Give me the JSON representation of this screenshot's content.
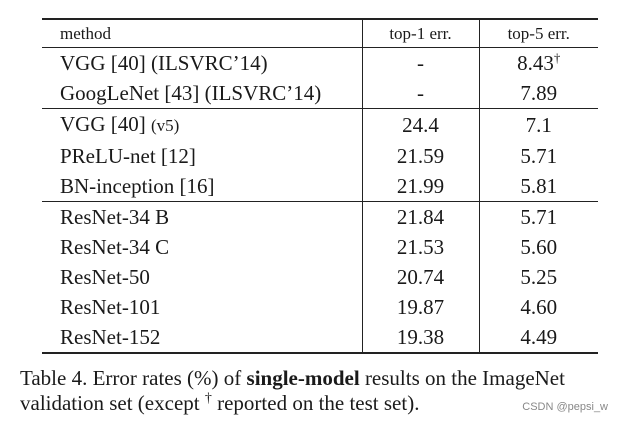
{
  "table": {
    "headers": {
      "method": "method",
      "top1": "top-1 err.",
      "top5": "top-5 err."
    },
    "groups": [
      {
        "rows": [
          {
            "method": "VGG [40] (ILSVRC’14)",
            "top1": "-",
            "top5": "8.43",
            "top5_mark": "†"
          },
          {
            "method": "GoogLeNet [43] (ILSVRC’14)",
            "top1": "-",
            "top5": "7.89"
          }
        ]
      },
      {
        "rows": [
          {
            "method": "VGG [40]",
            "method_suffix": "(v5)",
            "top1": "24.4",
            "top5": "7.1"
          },
          {
            "method": "PReLU-net [12]",
            "top1": "21.59",
            "top5": "5.71"
          },
          {
            "method": "BN-inception [16]",
            "top1": "21.99",
            "top5": "5.81"
          }
        ]
      },
      {
        "rows": [
          {
            "method": "ResNet-34 B",
            "top1": "21.84",
            "top5": "5.71"
          },
          {
            "method": "ResNet-34 C",
            "top1": "21.53",
            "top5": "5.60"
          },
          {
            "method": "ResNet-50",
            "top1": "20.74",
            "top5": "5.25"
          },
          {
            "method": "ResNet-101",
            "top1": "19.87",
            "top5": "4.60"
          },
          {
            "method": "ResNet-152",
            "top1": "19.38",
            "top5": "4.49",
            "bold": true
          }
        ]
      }
    ]
  },
  "caption": {
    "part1": "Table 4. Error rates (%) of ",
    "bold": "single-model",
    "part2": " results on the ImageNet validation set (except ",
    "dagger": "†",
    "part3": " reported on the test set)."
  },
  "watermark": "CSDN @pepsi_w"
}
